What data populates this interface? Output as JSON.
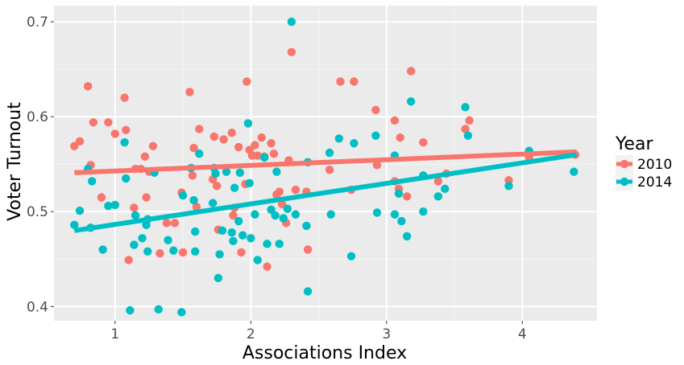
{
  "chart_data": {
    "type": "scatter",
    "xlabel": "Associations Index",
    "ylabel": "Voter Turnout",
    "xlim": [
      0.55,
      4.55
    ],
    "ylim": [
      0.385,
      0.717
    ],
    "x_ticks": [
      1,
      2,
      3,
      4
    ],
    "x_tick_labels": [
      "1",
      "2",
      "3",
      "4"
    ],
    "y_ticks": [
      0.4,
      0.5,
      0.6,
      0.7
    ],
    "y_tick_labels": [
      "0.4",
      "0.5",
      "0.6",
      "0.7"
    ],
    "grid": true,
    "legend": {
      "title": "Year",
      "position": "right"
    },
    "series": [
      {
        "name": "2010",
        "color": "#f8766d",
        "points": [
          [
            0.7,
            0.569
          ],
          [
            0.74,
            0.574
          ],
          [
            0.8,
            0.632
          ],
          [
            0.82,
            0.549
          ],
          [
            0.84,
            0.594
          ],
          [
            0.9,
            0.515
          ],
          [
            0.95,
            0.594
          ],
          [
            1.0,
            0.582
          ],
          [
            1.07,
            0.62
          ],
          [
            1.08,
            0.586
          ],
          [
            1.1,
            0.449
          ],
          [
            1.14,
            0.504
          ],
          [
            1.15,
            0.545
          ],
          [
            1.19,
            0.545
          ],
          [
            1.22,
            0.558
          ],
          [
            1.23,
            0.515
          ],
          [
            1.25,
            0.542
          ],
          [
            1.28,
            0.569
          ],
          [
            1.33,
            0.456
          ],
          [
            1.38,
            0.488
          ],
          [
            1.44,
            0.488
          ],
          [
            1.49,
            0.52
          ],
          [
            1.5,
            0.457
          ],
          [
            1.55,
            0.626
          ],
          [
            1.57,
            0.538
          ],
          [
            1.58,
            0.567
          ],
          [
            1.6,
            0.505
          ],
          [
            1.62,
            0.587
          ],
          [
            1.72,
            0.534
          ],
          [
            1.73,
            0.579
          ],
          [
            1.75,
            0.527
          ],
          [
            1.76,
            0.481
          ],
          [
            1.8,
            0.576
          ],
          [
            1.86,
            0.583
          ],
          [
            1.87,
            0.496
          ],
          [
            1.88,
            0.504
          ],
          [
            1.91,
            0.568
          ],
          [
            1.93,
            0.457
          ],
          [
            1.96,
            0.529
          ],
          [
            1.97,
            0.637
          ],
          [
            1.99,
            0.565
          ],
          [
            2.01,
            0.559
          ],
          [
            2.03,
            0.57
          ],
          [
            2.05,
            0.559
          ],
          [
            2.08,
            0.578
          ],
          [
            2.1,
            0.558
          ],
          [
            2.12,
            0.442
          ],
          [
            2.15,
            0.572
          ],
          [
            2.17,
            0.561
          ],
          [
            2.19,
            0.518
          ],
          [
            2.21,
            0.521
          ],
          [
            2.23,
            0.508
          ],
          [
            2.26,
            0.488
          ],
          [
            2.28,
            0.554
          ],
          [
            2.3,
            0.668
          ],
          [
            2.33,
            0.523
          ],
          [
            2.41,
            0.521
          ],
          [
            2.42,
            0.46
          ],
          [
            2.58,
            0.544
          ],
          [
            2.66,
            0.637
          ],
          [
            2.74,
            0.523
          ],
          [
            2.76,
            0.637
          ],
          [
            2.92,
            0.607
          ],
          [
            2.93,
            0.549
          ],
          [
            3.06,
            0.596
          ],
          [
            3.06,
            0.532
          ],
          [
            3.09,
            0.524
          ],
          [
            3.1,
            0.578
          ],
          [
            3.15,
            0.516
          ],
          [
            3.18,
            0.648
          ],
          [
            3.27,
            0.573
          ],
          [
            3.38,
            0.532
          ],
          [
            3.44,
            0.54
          ],
          [
            3.58,
            0.587
          ],
          [
            3.61,
            0.596
          ],
          [
            3.9,
            0.533
          ],
          [
            4.05,
            0.557
          ],
          [
            4.39,
            0.56
          ]
        ],
        "trend": {
          "x": [
            0.7,
            4.4
          ],
          "y": [
            0.541,
            0.563
          ]
        }
      },
      {
        "name": "2014",
        "color": "#00bfc4",
        "points": [
          [
            0.7,
            0.486
          ],
          [
            0.74,
            0.501
          ],
          [
            0.8,
            0.545
          ],
          [
            0.82,
            0.483
          ],
          [
            0.83,
            0.532
          ],
          [
            0.91,
            0.46
          ],
          [
            0.95,
            0.506
          ],
          [
            1.0,
            0.507
          ],
          [
            1.07,
            0.573
          ],
          [
            1.08,
            0.535
          ],
          [
            1.11,
            0.396
          ],
          [
            1.14,
            0.465
          ],
          [
            1.15,
            0.496
          ],
          [
            1.2,
            0.472
          ],
          [
            1.23,
            0.486
          ],
          [
            1.24,
            0.458
          ],
          [
            1.24,
            0.492
          ],
          [
            1.29,
            0.541
          ],
          [
            1.32,
            0.397
          ],
          [
            1.39,
            0.47
          ],
          [
            1.43,
            0.459
          ],
          [
            1.49,
            0.394
          ],
          [
            1.5,
            0.517
          ],
          [
            1.56,
            0.546
          ],
          [
            1.58,
            0.512
          ],
          [
            1.59,
            0.479
          ],
          [
            1.59,
            0.458
          ],
          [
            1.62,
            0.561
          ],
          [
            1.72,
            0.509
          ],
          [
            1.73,
            0.546
          ],
          [
            1.74,
            0.54
          ],
          [
            1.76,
            0.43
          ],
          [
            1.77,
            0.455
          ],
          [
            1.79,
            0.48
          ],
          [
            1.82,
            0.542
          ],
          [
            1.86,
            0.478
          ],
          [
            1.87,
            0.469
          ],
          [
            1.88,
            0.525
          ],
          [
            1.91,
            0.49
          ],
          [
            1.92,
            0.541
          ],
          [
            1.94,
            0.475
          ],
          [
            1.98,
            0.593
          ],
          [
            1.99,
            0.53
          ],
          [
            2.0,
            0.472
          ],
          [
            2.03,
            0.497
          ],
          [
            2.05,
            0.449
          ],
          [
            2.1,
            0.557
          ],
          [
            2.12,
            0.466
          ],
          [
            2.15,
            0.502
          ],
          [
            2.18,
            0.496
          ],
          [
            2.19,
            0.542
          ],
          [
            2.21,
            0.466
          ],
          [
            2.24,
            0.493
          ],
          [
            2.27,
            0.503
          ],
          [
            2.3,
            0.7
          ],
          [
            2.33,
            0.497
          ],
          [
            2.41,
            0.485
          ],
          [
            2.42,
            0.552
          ],
          [
            2.42,
            0.416
          ],
          [
            2.58,
            0.562
          ],
          [
            2.59,
            0.497
          ],
          [
            2.65,
            0.577
          ],
          [
            2.74,
            0.453
          ],
          [
            2.76,
            0.572
          ],
          [
            2.92,
            0.58
          ],
          [
            2.93,
            0.499
          ],
          [
            3.06,
            0.559
          ],
          [
            3.06,
            0.497
          ],
          [
            3.09,
            0.519
          ],
          [
            3.11,
            0.49
          ],
          [
            3.15,
            0.474
          ],
          [
            3.18,
            0.616
          ],
          [
            3.27,
            0.538
          ],
          [
            3.27,
            0.5
          ],
          [
            3.38,
            0.516
          ],
          [
            3.43,
            0.524
          ],
          [
            3.58,
            0.61
          ],
          [
            3.6,
            0.58
          ],
          [
            3.9,
            0.527
          ],
          [
            4.05,
            0.564
          ],
          [
            4.38,
            0.542
          ]
        ],
        "trend": {
          "x": [
            0.7,
            4.4
          ],
          "y": [
            0.48,
            0.56
          ]
        }
      }
    ]
  }
}
